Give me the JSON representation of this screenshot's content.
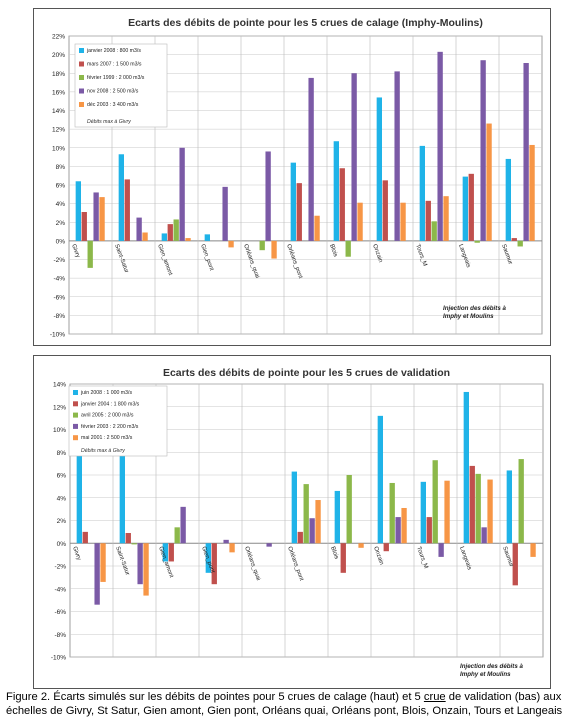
{
  "chart_data": [
    {
      "type": "bar",
      "title": "Ecarts des débits de pointe pour les 5 crues de calage (Imphy-Moulins)",
      "categories": [
        "Givry",
        "Saint-Satur",
        "Gien_amont",
        "Gien_pont",
        "Orléans_quai",
        "Orléans_pont",
        "Blois",
        "Onzain",
        "Tours_M",
        "Langeais",
        "Saumur"
      ],
      "series": [
        {
          "name": "janvier 2008 : 800 m3/s",
          "color": "#1fb3e8",
          "values": [
            6.4,
            9.3,
            0.8,
            0.7,
            0.0,
            8.4,
            10.7,
            15.4,
            10.2,
            6.9,
            8.8
          ]
        },
        {
          "name": "mars 2007 : 1 500 m3/s",
          "color": "#c0504d",
          "values": [
            3.1,
            6.6,
            1.8,
            0.0,
            0.0,
            6.2,
            7.8,
            6.5,
            4.3,
            7.2,
            0.3
          ]
        },
        {
          "name": "février 1999 : 2 000 m3/s",
          "color": "#8cb84a",
          "values": [
            -2.9,
            0.0,
            2.3,
            0.0,
            -1.0,
            0.0,
            -1.7,
            0.0,
            2.1,
            -0.2,
            -0.6
          ]
        },
        {
          "name": "nov 2008 : 2 500 m3/s",
          "color": "#7b5aa6",
          "values": [
            5.2,
            2.5,
            10.0,
            5.8,
            9.6,
            17.5,
            18.0,
            18.2,
            20.3,
            19.4,
            19.1
          ]
        },
        {
          "name": "déc 2003 : 3 400 m3/s",
          "color": "#f79646",
          "values": [
            4.7,
            0.9,
            0.3,
            -0.7,
            -1.9,
            2.7,
            4.1,
            4.1,
            4.8,
            12.6,
            10.3
          ]
        }
      ],
      "ylim": [
        -10,
        22
      ],
      "ytick_step": 2,
      "ytick_labels": [
        "-10%",
        "-8%",
        "-6%",
        "-4%",
        "-2%",
        "0%",
        "2%",
        "4%",
        "6%",
        "8%",
        "10%",
        "12%",
        "14%",
        "16%",
        "18%",
        "20%",
        "22%"
      ],
      "grid": true,
      "legend_position": "top-left",
      "legend_note": "Débits max à Givry",
      "annotation": "Injection des débits à Imphy et Moulins"
    },
    {
      "type": "bar",
      "title": "Ecarts des débits de pointe pour les 5 crues de validation",
      "categories": [
        "Givry",
        "Saint-Satur",
        "Gien_amont",
        "Gien_pont",
        "Orléans_quai",
        "Orléans_pont",
        "Blois",
        "Onzain",
        "Tours_M",
        "Langeais",
        "Saumur"
      ],
      "series": [
        {
          "name": "juin 2008 : 1 000 m3/s",
          "color": "#1fb3e8",
          "values": [
            8.4,
            7.8,
            -1.6,
            -2.6,
            0.0,
            6.3,
            4.6,
            11.2,
            5.4,
            13.3,
            6.4
          ]
        },
        {
          "name": "janvier 2004 : 1 800 m3/s",
          "color": "#c0504d",
          "values": [
            1.0,
            0.9,
            -1.6,
            -3.6,
            0.0,
            1.0,
            -2.6,
            -0.7,
            2.3,
            6.8,
            -3.7
          ]
        },
        {
          "name": "avril 2005 : 2 000 m3/s",
          "color": "#8cb84a",
          "values": [
            0.0,
            -0.1,
            1.4,
            0.0,
            0.0,
            5.2,
            6.0,
            5.3,
            7.3,
            6.1,
            7.4
          ]
        },
        {
          "name": "février 2003 : 2 200 m3/s",
          "color": "#7b5aa6",
          "values": [
            -5.4,
            -3.6,
            3.2,
            0.3,
            -0.3,
            2.2,
            0.0,
            2.3,
            -1.2,
            1.4,
            0.0
          ]
        },
        {
          "name": "mai 2001 : 2 500 m3/s",
          "color": "#f79646",
          "values": [
            -3.4,
            -4.6,
            0.0,
            -0.8,
            0.0,
            3.8,
            -0.4,
            3.1,
            5.5,
            5.6,
            -1.2
          ]
        }
      ],
      "ylim": [
        -10,
        14
      ],
      "ytick_step": 2,
      "ytick_labels": [
        "-10%",
        "-8%",
        "-6%",
        "-4%",
        "-2%",
        "0%",
        "2%",
        "4%",
        "6%",
        "8%",
        "10%",
        "12%",
        "14%"
      ],
      "grid": true,
      "legend_position": "top-left",
      "legend_note": "Débits max à Givry",
      "annotation": "Injection des débits à Imphy et Moulins"
    }
  ],
  "caption": {
    "before_link": "Figure 2. Écarts simulés sur les débits de pointes pour 5 crues de calage (haut) et 5 ",
    "link": "crue",
    "after_link": " de validation (bas) aux échelles de Givry, St Satur, Gien amont, Gien pont, Orléans quai, Orléans pont, Blois, Onzain, Tours et Langeais"
  }
}
